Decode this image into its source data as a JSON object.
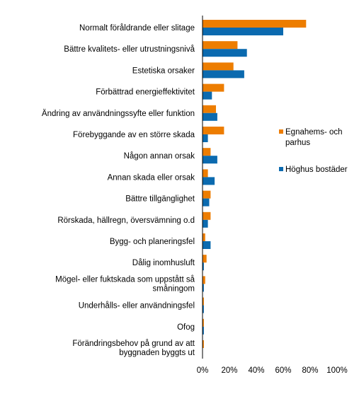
{
  "chart_data": {
    "type": "bar",
    "orientation": "horizontal",
    "categories": [
      "Normalt föråldrande eller slitage",
      "Bättre kvalitets- eller utrustningsnivå",
      "Estetiska orsaker",
      "Förbättrad energieffektivitet",
      "Ändring av användningssyfte eller funktion",
      "Förebyggande av en större skada",
      "Någon annan orsak",
      "Annan skada eller orsak",
      "Bättre tillgänglighet",
      "Rörskada, hällregn, översvämning o.d",
      "Bygg- och planeringsfel",
      "Dålig inomhusluft",
      "Mögel- eller fuktskada som uppstått så småningom",
      "Underhålls- eller användningsfel",
      "Ofog",
      "Förändringsbehov på grund av att byggnaden byggts ut"
    ],
    "category_lines": [
      [
        "Normalt föråldrande eller slitage"
      ],
      [
        "Bättre kvalitets- eller utrustningsnivå"
      ],
      [
        "Estetiska orsaker"
      ],
      [
        "Förbättrad energieffektivitet"
      ],
      [
        "Ändring av användningssyfte eller funktion"
      ],
      [
        "Förebyggande av en större skada"
      ],
      [
        "Någon annan orsak"
      ],
      [
        "Annan skada eller orsak"
      ],
      [
        "Bättre tillgänglighet"
      ],
      [
        "Rörskada, hällregn, översvämning o.d"
      ],
      [
        "Bygg- och planeringsfel"
      ],
      [
        "Dålig inomhusluft"
      ],
      [
        "Mögel- eller fuktskada som uppstått så",
        "småningom"
      ],
      [
        "Underhålls- eller användningsfel"
      ],
      [
        "Ofog"
      ],
      [
        "Förändringsbehov på grund av att",
        "byggnaden byggts ut"
      ]
    ],
    "series": [
      {
        "name": "Egnahems- och parhus",
        "legend_lines": [
          "Egnahems- och",
          "parhus"
        ],
        "color": "#ED7D00",
        "values": [
          77,
          26,
          23,
          16,
          10,
          16,
          6,
          4,
          6,
          6,
          2,
          3,
          2,
          1,
          1,
          1
        ]
      },
      {
        "name": "Höghus bostäder",
        "legend_lines": [
          "Höghus bostäder"
        ],
        "color": "#0B6AAF",
        "values": [
          60,
          33,
          31,
          7,
          11,
          4,
          11,
          9,
          5,
          4,
          6,
          1,
          1,
          1,
          1,
          0
        ]
      }
    ],
    "xlim": [
      0,
      100
    ],
    "xticks": [
      0,
      20,
      40,
      60,
      80,
      100
    ],
    "xtick_labels": [
      "0%",
      "20%",
      "40%",
      "60%",
      "80%",
      "100%"
    ],
    "title": "",
    "xlabel": "",
    "ylabel": "",
    "grid": false,
    "legend_position": "right"
  }
}
